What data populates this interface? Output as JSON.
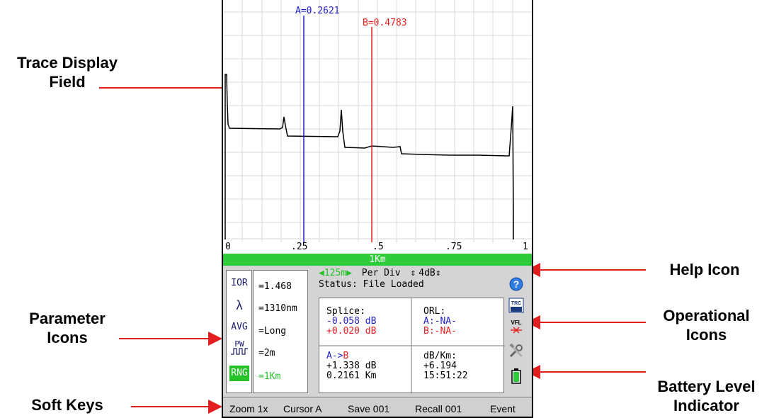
{
  "callouts": {
    "trace_display": "Trace Display Field",
    "parameter_icons": "Parameter Icons",
    "soft_keys": "Soft Keys",
    "help_icon": "Help Icon",
    "operational_icons": "Operational Icons",
    "battery": "Battery Level Indicator"
  },
  "trace": {
    "cursor_a_label": "A=0.2621",
    "cursor_b_label": "B=0.4783",
    "cursor_a_km": 0.2621,
    "cursor_b_km": 0.4783,
    "x_ticks": [
      "0",
      ".25",
      ".5",
      ".75",
      "1"
    ],
    "range_label": "1Km",
    "colors": {
      "cursor_a": "#2222cc",
      "cursor_b": "#e52020",
      "trace": "#000000",
      "grid": "#d8d8d8"
    }
  },
  "params": {
    "icons": [
      {
        "name": "ior-icon",
        "text": "IOR"
      },
      {
        "name": "wavelength-icon",
        "text": "λ"
      },
      {
        "name": "avg-icon",
        "text": "AVG"
      },
      {
        "name": "pulse-width-icon",
        "text": "PW"
      },
      {
        "name": "range-icon",
        "text": "RNG"
      }
    ],
    "values": [
      "=1.468",
      "=1310nm",
      "=Long",
      "=2m",
      "=1Km"
    ]
  },
  "status": {
    "per_div_value": "125m",
    "per_div_label": "Per Div",
    "db_value": "4dB",
    "status_line": "Status: File Loaded"
  },
  "measure": {
    "splice_title": "Splice:",
    "splice_a": "-0.058 dB",
    "splice_b": "+0.020 dB",
    "orl_title": "ORL:",
    "orl_a": "A:-NA-",
    "orl_b": "B:-NA-",
    "ab_prefix": "A->",
    "ab_suffix": "B",
    "ab_db": "+1.338 dB",
    "ab_km": "0.2161 Km",
    "dbkm_title": "dB/Km:",
    "dbkm_value": "+6.194",
    "time": "15:51:22"
  },
  "op_icons": {
    "trc": "TRC",
    "vfl": "VFL"
  },
  "softkeys": [
    "Zoom 1x",
    "Cursor A",
    "Save 001",
    "Recall 001",
    "Event"
  ]
}
